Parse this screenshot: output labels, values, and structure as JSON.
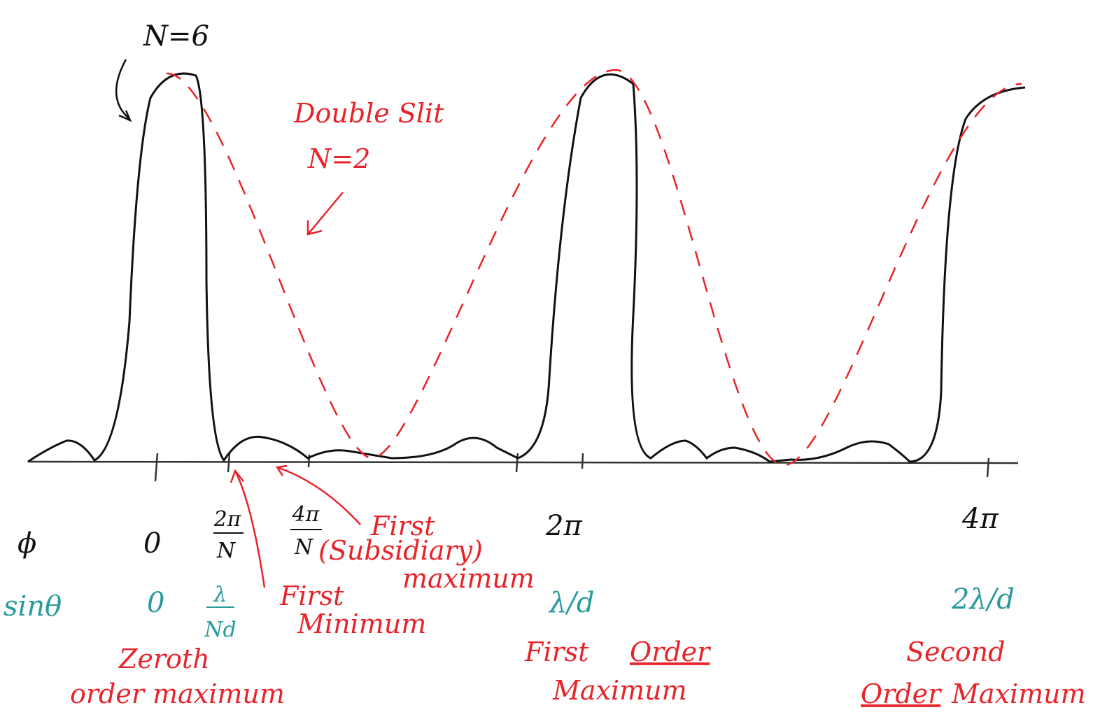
{
  "annotations": {
    "n6": "N=6",
    "double_slit": "Double Slit",
    "n2": "N=2"
  },
  "phi_row": {
    "label": "ϕ",
    "zero": "0",
    "two_pi_over_n": {
      "num": "2π",
      "den": "N"
    },
    "four_pi_over_n": {
      "num": "4π",
      "den": "N"
    },
    "two_pi": "2π",
    "four_pi": "4π"
  },
  "sin_row": {
    "label": "sinθ",
    "zero": "0",
    "lambda_over_nd": {
      "num": "λ",
      "den": "Nd"
    },
    "lambda_over_d": "λ/d",
    "two_lambda_over_d": "2λ/d"
  },
  "callouts": {
    "first_subsidiary": [
      "First",
      "(Subsidiary)",
      "maximum"
    ],
    "first_minimum": [
      "First",
      "Minimum"
    ]
  },
  "orders": {
    "zeroth": [
      "Zeroth",
      "order maximum"
    ],
    "first": {
      "word": "First",
      "underlined": "Order",
      "line2": "Maximum"
    },
    "second": {
      "line1": "Second",
      "underlined": "Order",
      "word": "Maximum"
    }
  }
}
